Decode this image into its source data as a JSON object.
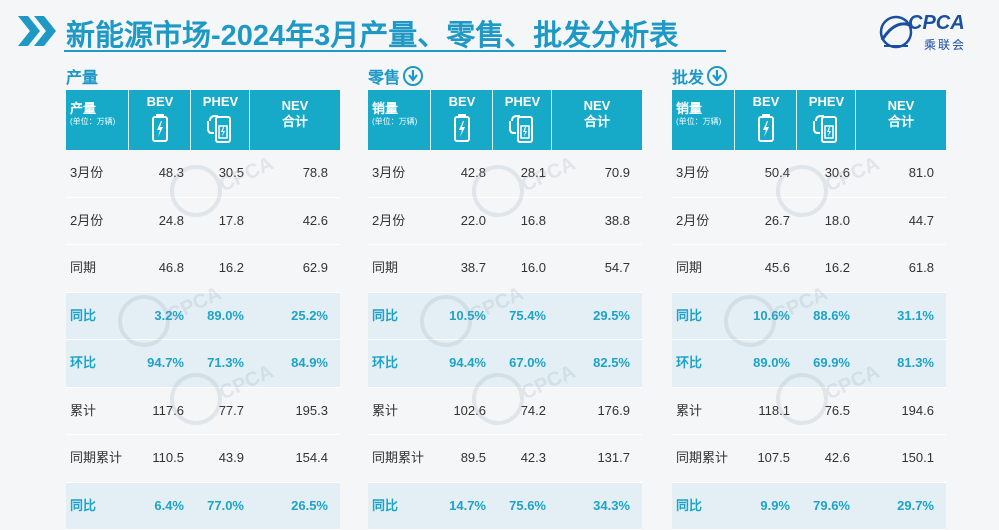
{
  "header": {
    "title": "新能源市场-2024年3月产量、零售、批发分析表",
    "logo_text": "CPCA",
    "logo_cn": "乘联会"
  },
  "colors": {
    "accent": "#16a9c8",
    "title": "#1e98c4",
    "highlight_text": "#1ea3c8",
    "highlight_row": "#e3eff5"
  },
  "panels": [
    {
      "name": "产量",
      "has_icon": false,
      "header": {
        "first": "产量",
        "unit": "(单位：万辆)",
        "cols": [
          "BEV",
          "PHEV",
          "NEV",
          "合计"
        ]
      },
      "rows": [
        {
          "label": "3月份",
          "values": [
            "48.3",
            "30.5",
            "78.8"
          ],
          "highlight": false
        },
        {
          "label": "2月份",
          "values": [
            "24.8",
            "17.8",
            "42.6"
          ],
          "highlight": false
        },
        {
          "label": "同期",
          "values": [
            "46.8",
            "16.2",
            "62.9"
          ],
          "highlight": false
        },
        {
          "label": "同比",
          "values": [
            "3.2%",
            "89.0%",
            "25.2%"
          ],
          "highlight": true
        },
        {
          "label": "环比",
          "values": [
            "94.7%",
            "71.3%",
            "84.9%"
          ],
          "highlight": true
        },
        {
          "label": "累计",
          "values": [
            "117.6",
            "77.7",
            "195.3"
          ],
          "highlight": false
        },
        {
          "label": "同期累计",
          "values": [
            "110.5",
            "43.9",
            "154.4"
          ],
          "highlight": false
        },
        {
          "label": "同比",
          "values": [
            "6.4%",
            "77.0%",
            "26.5%"
          ],
          "highlight": true
        }
      ]
    },
    {
      "name": "零售",
      "has_icon": true,
      "header": {
        "first": "销量",
        "unit": "(单位：万辆)",
        "cols": [
          "BEV",
          "PHEV",
          "NEV",
          "合计"
        ]
      },
      "rows": [
        {
          "label": "3月份",
          "values": [
            "42.8",
            "28.1",
            "70.9"
          ],
          "highlight": false
        },
        {
          "label": "2月份",
          "values": [
            "22.0",
            "16.8",
            "38.8"
          ],
          "highlight": false
        },
        {
          "label": "同期",
          "values": [
            "38.7",
            "16.0",
            "54.7"
          ],
          "highlight": false
        },
        {
          "label": "同比",
          "values": [
            "10.5%",
            "75.4%",
            "29.5%"
          ],
          "highlight": true
        },
        {
          "label": "环比",
          "values": [
            "94.4%",
            "67.0%",
            "82.5%"
          ],
          "highlight": true
        },
        {
          "label": "累计",
          "values": [
            "102.6",
            "74.2",
            "176.9"
          ],
          "highlight": false
        },
        {
          "label": "同期累计",
          "values": [
            "89.5",
            "42.3",
            "131.7"
          ],
          "highlight": false
        },
        {
          "label": "同比",
          "values": [
            "14.7%",
            "75.6%",
            "34.3%"
          ],
          "highlight": true
        }
      ]
    },
    {
      "name": "批发",
      "has_icon": true,
      "header": {
        "first": "销量",
        "unit": "(单位：万辆)",
        "cols": [
          "BEV",
          "PHEV",
          "NEV",
          "合计"
        ]
      },
      "rows": [
        {
          "label": "3月份",
          "values": [
            "50.4",
            "30.6",
            "81.0"
          ],
          "highlight": false
        },
        {
          "label": "2月份",
          "values": [
            "26.7",
            "18.0",
            "44.7"
          ],
          "highlight": false
        },
        {
          "label": "同期",
          "values": [
            "45.6",
            "16.2",
            "61.8"
          ],
          "highlight": false
        },
        {
          "label": "同比",
          "values": [
            "10.6%",
            "88.6%",
            "31.1%"
          ],
          "highlight": true
        },
        {
          "label": "环比",
          "values": [
            "89.0%",
            "69.9%",
            "81.3%"
          ],
          "highlight": true
        },
        {
          "label": "累计",
          "values": [
            "118.1",
            "76.5",
            "194.6"
          ],
          "highlight": false
        },
        {
          "label": "同期累计",
          "values": [
            "107.5",
            "42.6",
            "150.1"
          ],
          "highlight": false
        },
        {
          "label": "同比",
          "values": [
            "9.9%",
            "79.6%",
            "29.7%"
          ],
          "highlight": true
        }
      ]
    }
  ]
}
